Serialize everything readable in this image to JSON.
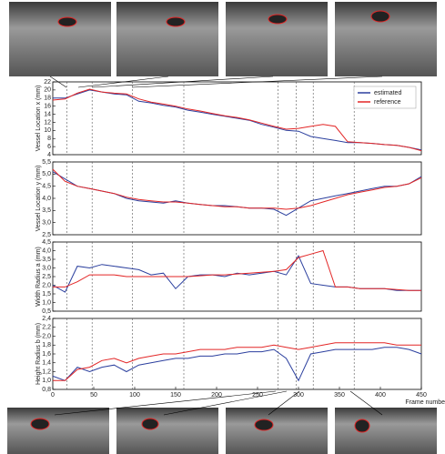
{
  "chart_data": [
    {
      "type": "line",
      "ylabel": "Vessel Location x (mm)",
      "legend": "upper right",
      "x": [
        0,
        15,
        30,
        45,
        60,
        75,
        90,
        105,
        120,
        135,
        150,
        165,
        180,
        195,
        210,
        225,
        240,
        255,
        270,
        285,
        300,
        315,
        330,
        345,
        360,
        375,
        390,
        405,
        420,
        435,
        450
      ],
      "xlim": [
        0,
        450
      ],
      "ylim": [
        4,
        22
      ],
      "yticks": [
        4,
        6,
        8,
        10,
        12,
        14,
        16,
        18,
        20,
        22
      ],
      "vlines": [
        17,
        48,
        97,
        160,
        275,
        297,
        318,
        368
      ],
      "series": [
        {
          "name": "estimated",
          "color": "#2b3f9e",
          "values": [
            18,
            18,
            19,
            20,
            19.5,
            19,
            18.8,
            17.2,
            16.8,
            16.2,
            15.8,
            15,
            14.5,
            14,
            13.5,
            13,
            12.5,
            11.5,
            10.8,
            10,
            9.8,
            8.5,
            8,
            7.5,
            7,
            7,
            6.8,
            6.5,
            6.3,
            5.8,
            5.2
          ]
        },
        {
          "name": "reference",
          "color": "#e32626",
          "values": [
            17.5,
            17.8,
            19.2,
            20.2,
            19.5,
            19.2,
            19,
            17.8,
            17,
            16.5,
            16,
            15.3,
            14.8,
            14.2,
            13.6,
            13.2,
            12.6,
            11.8,
            11,
            10.3,
            10.5,
            11,
            11.5,
            11,
            7.2,
            7,
            6.8,
            6.5,
            6.3,
            5.8,
            5
          ]
        }
      ]
    },
    {
      "type": "line",
      "ylabel": "Vessel Location y (mm)",
      "x": [
        0,
        15,
        30,
        45,
        60,
        75,
        90,
        105,
        120,
        135,
        150,
        165,
        180,
        195,
        210,
        225,
        240,
        255,
        270,
        285,
        300,
        315,
        330,
        345,
        360,
        375,
        390,
        405,
        420,
        435,
        450
      ],
      "xlim": [
        0,
        450
      ],
      "ylim": [
        2.5,
        5.5
      ],
      "yticks": [
        {
          "value": 2.5,
          "label": "2,5"
        },
        {
          "value": 3,
          "label": "3,0"
        },
        {
          "value": 3.5,
          "label": "3,5"
        },
        {
          "value": 4,
          "label": "4,0"
        },
        {
          "value": 4.5,
          "label": "4,5"
        },
        {
          "value": 5,
          "label": "5,0"
        },
        {
          "value": 5.5,
          "label": "5,5"
        }
      ],
      "vlines": [
        17,
        48,
        97,
        160,
        275,
        297,
        318,
        368
      ],
      "series": [
        {
          "name": "estimated",
          "color": "#2b3f9e",
          "values": [
            5.1,
            4.8,
            4.5,
            4.4,
            4.3,
            4.2,
            4.0,
            3.9,
            3.85,
            3.8,
            3.9,
            3.8,
            3.75,
            3.7,
            3.7,
            3.65,
            3.6,
            3.6,
            3.55,
            3.3,
            3.6,
            3.9,
            4.0,
            4.1,
            4.2,
            4.3,
            4.4,
            4.5,
            4.5,
            4.6,
            4.9
          ]
        },
        {
          "name": "reference",
          "color": "#e32626",
          "values": [
            5.2,
            4.7,
            4.5,
            4.4,
            4.3,
            4.2,
            4.05,
            3.95,
            3.9,
            3.85,
            3.85,
            3.8,
            3.75,
            3.7,
            3.65,
            3.65,
            3.6,
            3.6,
            3.6,
            3.55,
            3.6,
            3.7,
            3.85,
            4.0,
            4.15,
            4.25,
            4.35,
            4.45,
            4.5,
            4.6,
            4.85
          ]
        }
      ]
    },
    {
      "type": "line",
      "ylabel": "Width Radius a (mm)",
      "x": [
        0,
        15,
        30,
        45,
        60,
        75,
        90,
        105,
        120,
        135,
        150,
        165,
        180,
        195,
        210,
        225,
        240,
        255,
        270,
        285,
        300,
        315,
        330,
        345,
        360,
        375,
        390,
        405,
        420,
        435,
        450
      ],
      "xlim": [
        0,
        450
      ],
      "ylim": [
        0.5,
        4.5
      ],
      "yticks": [
        {
          "value": 0.5,
          "label": "0,5"
        },
        {
          "value": 1,
          "label": "1,0"
        },
        {
          "value": 1.5,
          "label": "1,5"
        },
        {
          "value": 2,
          "label": "2,0"
        },
        {
          "value": 2.5,
          "label": "2,5"
        },
        {
          "value": 3,
          "label": "3,0"
        },
        {
          "value": 3.5,
          "label": "3,5"
        },
        {
          "value": 4,
          "label": "4,0"
        },
        {
          "value": 4.5,
          "label": "4,5"
        }
      ],
      "vlines": [
        17,
        48,
        97,
        160,
        275,
        297,
        318,
        368
      ],
      "series": [
        {
          "name": "estimated",
          "color": "#2b3f9e",
          "values": [
            2.0,
            1.6,
            3.1,
            3.0,
            3.2,
            3.1,
            3.0,
            2.9,
            2.6,
            2.7,
            1.8,
            2.5,
            2.6,
            2.6,
            2.5,
            2.7,
            2.6,
            2.7,
            2.8,
            2.6,
            3.7,
            2.1,
            2.0,
            1.9,
            1.9,
            1.8,
            1.8,
            1.8,
            1.7,
            1.7,
            1.7
          ]
        },
        {
          "name": "reference",
          "color": "#e32626",
          "values": [
            1.9,
            1.9,
            2.2,
            2.6,
            2.6,
            2.6,
            2.5,
            2.5,
            2.5,
            2.5,
            2.5,
            2.5,
            2.55,
            2.6,
            2.6,
            2.65,
            2.7,
            2.75,
            2.8,
            2.9,
            3.6,
            3.8,
            4.0,
            1.9,
            1.9,
            1.8,
            1.8,
            1.8,
            1.75,
            1.7,
            1.7
          ]
        }
      ]
    },
    {
      "type": "line",
      "ylabel": "Height Radius b (mm)",
      "xlabel": "Frame numbe",
      "x": [
        0,
        15,
        30,
        45,
        60,
        75,
        90,
        105,
        120,
        135,
        150,
        165,
        180,
        195,
        210,
        225,
        240,
        255,
        270,
        285,
        300,
        315,
        330,
        345,
        360,
        375,
        390,
        405,
        420,
        435,
        450
      ],
      "xlim": [
        0,
        450
      ],
      "xticks": [
        0,
        50,
        100,
        150,
        200,
        250,
        300,
        350,
        400,
        450
      ],
      "ylim": [
        0.8,
        2.4
      ],
      "yticks": [
        {
          "value": 0.8,
          "label": "0,8"
        },
        {
          "value": 1,
          "label": "1,0"
        },
        {
          "value": 1.2,
          "label": "1,2"
        },
        {
          "value": 1.4,
          "label": "1,4"
        },
        {
          "value": 1.6,
          "label": "1,6"
        },
        {
          "value": 1.8,
          "label": "1,8"
        },
        {
          "value": 2,
          "label": "2,0"
        },
        {
          "value": 2.2,
          "label": "2,2"
        },
        {
          "value": 2.4,
          "label": "2,4"
        }
      ],
      "vlines": [
        17,
        48,
        97,
        160,
        275,
        297,
        318,
        368
      ],
      "series": [
        {
          "name": "estimated",
          "color": "#2b3f9e",
          "values": [
            1.1,
            1.0,
            1.3,
            1.2,
            1.3,
            1.35,
            1.2,
            1.35,
            1.4,
            1.45,
            1.5,
            1.5,
            1.55,
            1.55,
            1.6,
            1.6,
            1.65,
            1.65,
            1.7,
            1.5,
            1.0,
            1.6,
            1.65,
            1.7,
            1.7,
            1.7,
            1.7,
            1.75,
            1.75,
            1.7,
            1.6
          ]
        },
        {
          "name": "reference",
          "color": "#e32626",
          "values": [
            1.0,
            1.0,
            1.25,
            1.3,
            1.45,
            1.5,
            1.4,
            1.5,
            1.55,
            1.6,
            1.6,
            1.65,
            1.7,
            1.7,
            1.7,
            1.75,
            1.75,
            1.75,
            1.8,
            1.75,
            1.7,
            1.75,
            1.8,
            1.85,
            1.85,
            1.85,
            1.85,
            1.85,
            1.8,
            1.8,
            1.8
          ]
        }
      ]
    }
  ]
}
